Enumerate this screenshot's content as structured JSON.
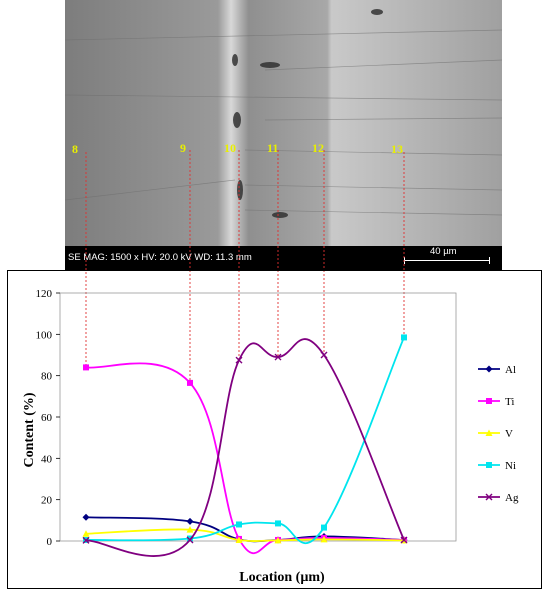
{
  "sem": {
    "info": "SE  MAG: 1500 x  HV: 20.0 kV  WD: 11.3 mm",
    "scale": "40 µm",
    "points": [
      "8",
      "9",
      "10",
      "11",
      "12",
      "13"
    ]
  },
  "chart_data": {
    "type": "line",
    "xlabel": "Location (µm)",
    "ylabel": "Content (%)",
    "ylim": [
      0,
      120
    ],
    "yticks": [
      "0",
      "20",
      "40",
      "60",
      "80",
      "100",
      "120"
    ],
    "x": [
      "8",
      "9",
      "10",
      "11",
      "12",
      "13"
    ],
    "legend": "right",
    "series": [
      {
        "name": "Al",
        "color": "#000080",
        "marker": "diamond",
        "values": [
          11.5,
          9.5,
          0.8,
          0.5,
          2.2,
          0.5
        ]
      },
      {
        "name": "Ti",
        "color": "#ff00ff",
        "marker": "square",
        "values": [
          84,
          76.5,
          1,
          0.5,
          1.5,
          0.5
        ]
      },
      {
        "name": "V",
        "color": "#ffff00",
        "marker": "triangle",
        "values": [
          3.5,
          5.5,
          0.5,
          0.3,
          0.8,
          0.3
        ]
      },
      {
        "name": "Ni",
        "color": "#00e5ee",
        "marker": "square",
        "values": [
          0.5,
          1.2,
          8,
          8.5,
          6.5,
          98.5
        ]
      },
      {
        "name": "Ag",
        "color": "#800080",
        "marker": "cross",
        "values": [
          0.3,
          0.5,
          87.5,
          89,
          90,
          0.5
        ]
      }
    ]
  }
}
